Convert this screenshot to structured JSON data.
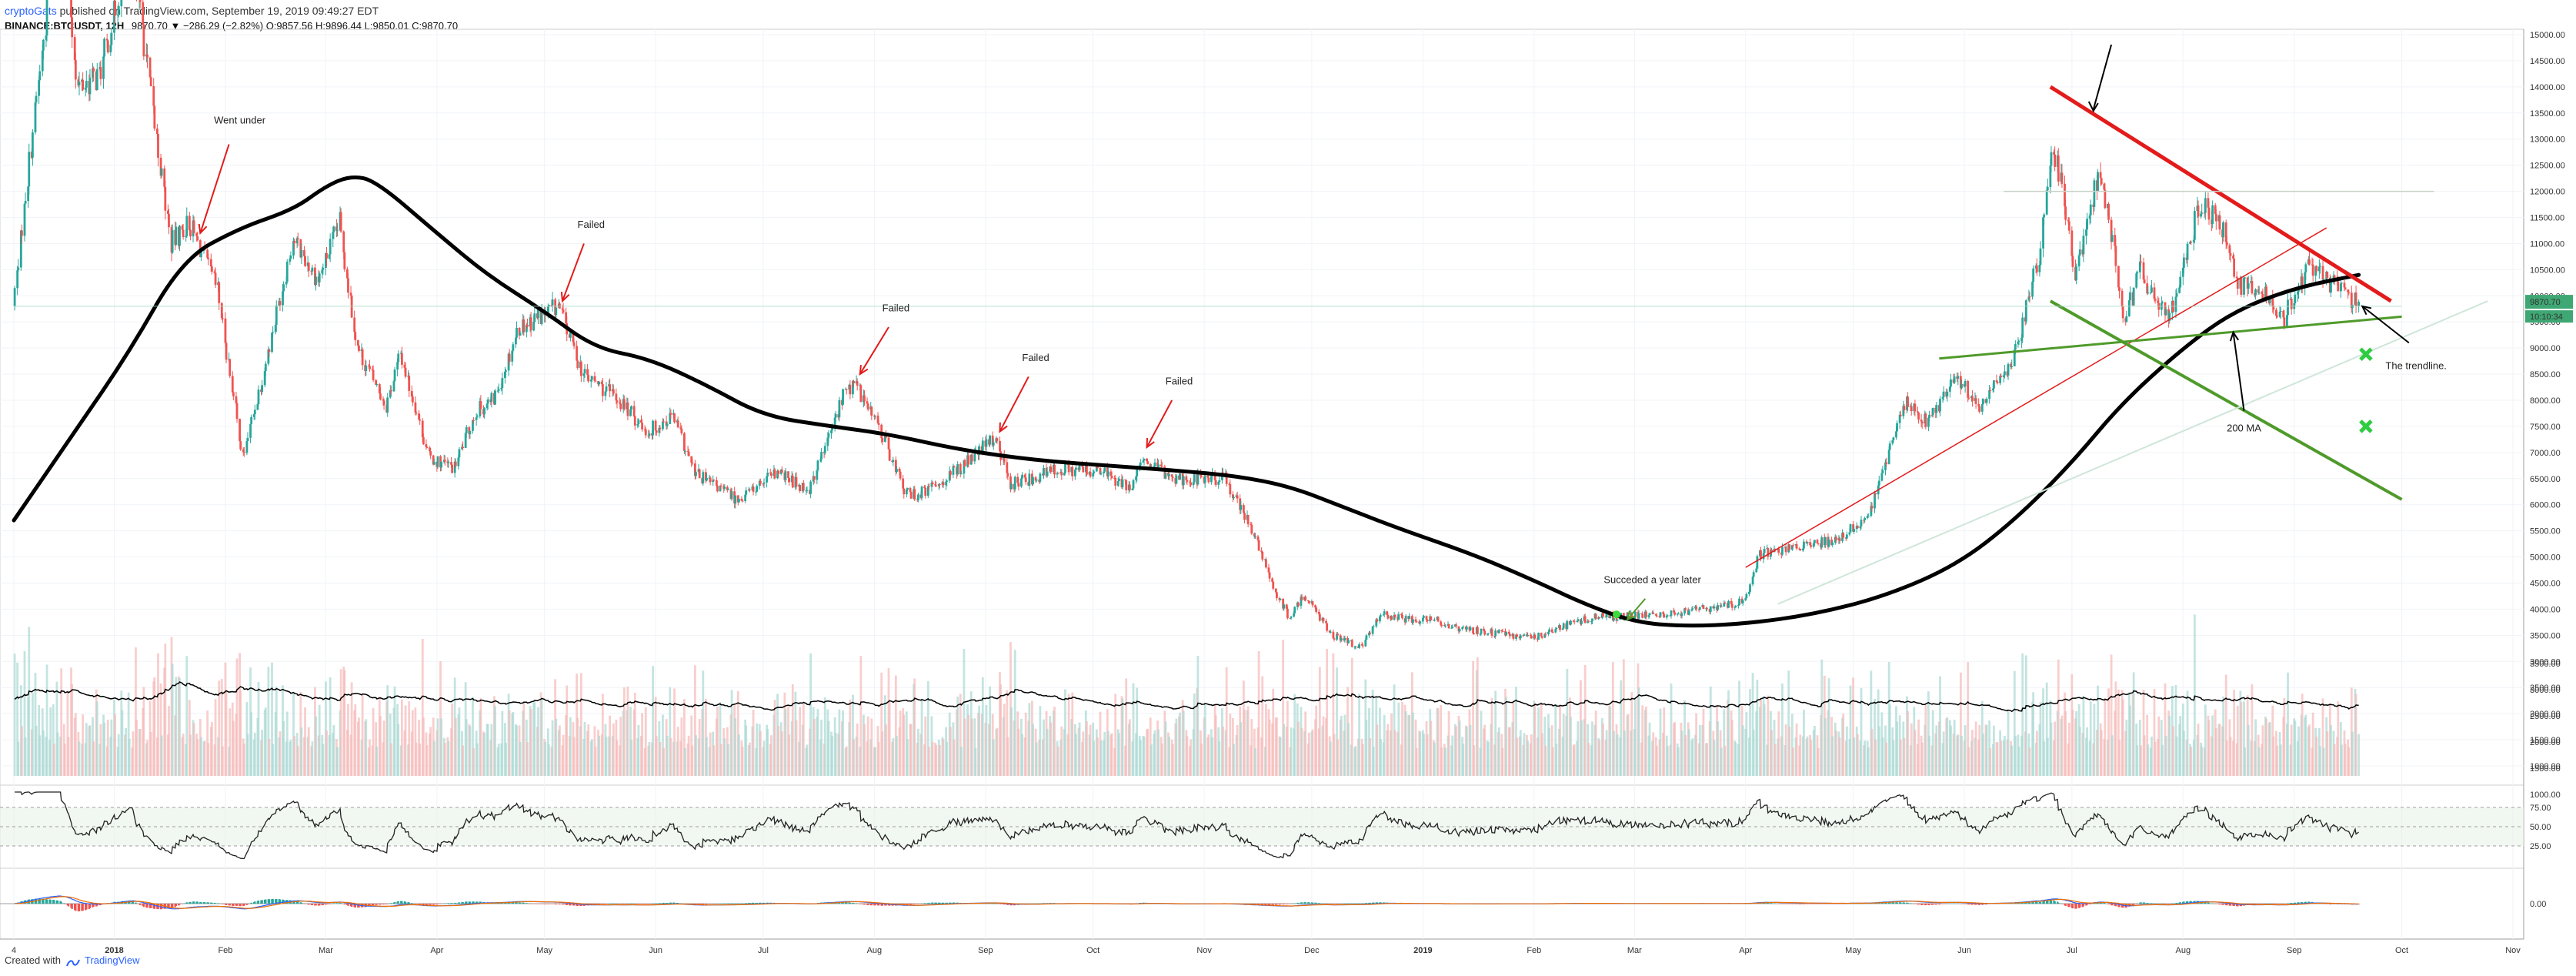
{
  "header": {
    "user": "cryptoGats",
    "published": "published on TradingView.com, September 19, 2019 09:49:27 EDT",
    "symbol": "BINANCE:BTCUSDT, 12H",
    "change": "9870.70 ▼ −286.29 (−2.82%) O:9857.56 H:9896.44 L:9850.01 C:9870.70"
  },
  "footer": {
    "created": "Created with",
    "brand": "TradingView"
  },
  "colors": {
    "up": "#26a69a",
    "down": "#ef5350",
    "ma": "#000000",
    "red_line": "#e31b1b",
    "green_line": "#4f9a2b",
    "price_tag": "#3fa773"
  },
  "price_tags": {
    "last": "9870.70",
    "countdown": "10:10:34"
  },
  "chart_data": [
    {
      "type": "candlestick",
      "title": "",
      "x_start": "2018-01-01",
      "x_end": "2019-11-01",
      "x_ticks": [
        "4",
        "2018",
        "Feb",
        "Mar",
        "Apr",
        "May",
        "Jun",
        "Jul",
        "Aug",
        "Sep",
        "Oct",
        "Nov",
        "Dec",
        "2019",
        "Feb",
        "Mar",
        "Apr",
        "May",
        "Jun",
        "Jul",
        "Aug",
        "Sep",
        "Oct",
        "Nov"
      ],
      "x_tick_dates": [
        "2017-12-04",
        "2018-01-01",
        "2018-02-01",
        "2018-03-01",
        "2018-04-01",
        "2018-05-01",
        "2018-06-01",
        "2018-07-01",
        "2018-08-01",
        "2018-09-01",
        "2018-10-01",
        "2018-11-01",
        "2018-12-01",
        "2019-01-01",
        "2019-02-01",
        "2019-03-01",
        "2019-04-01",
        "2019-05-01",
        "2019-06-01",
        "2019-07-01",
        "2019-08-01",
        "2019-09-01",
        "2019-10-01",
        "2019-11-01"
      ],
      "ylim": [
        0,
        15000
      ],
      "y_ticks": [
        "15000.00",
        "14500.00",
        "14000.00",
        "13500.00",
        "13000.00",
        "12500.00",
        "12000.00",
        "11500.00",
        "11000.00",
        "10500.00",
        "10000.00",
        "9500.00",
        "9000.00",
        "8500.00",
        "8000.00",
        "7500.00",
        "7000.00",
        "6500.00",
        "6000.00",
        "5500.00",
        "5000.00",
        "4500.00",
        "4000.00",
        "3500.00",
        "3000.00",
        "2500.00",
        "2000.00",
        "1500.00",
        "1000.00"
      ],
      "price_path": [
        [
          "2017-12-04",
          9800
        ],
        [
          "2017-12-10",
          13500
        ],
        [
          "2017-12-17",
          17500
        ],
        [
          "2017-12-22",
          14000
        ],
        [
          "2017-12-28",
          14200
        ],
        [
          "2018-01-06",
          16800
        ],
        [
          "2018-01-12",
          13500
        ],
        [
          "2018-01-17",
          11000
        ],
        [
          "2018-01-22",
          11400
        ],
        [
          "2018-01-30",
          10100
        ],
        [
          "2018-02-06",
          6900
        ],
        [
          "2018-02-12",
          8600
        ],
        [
          "2018-02-20",
          11100
        ],
        [
          "2018-02-27",
          10300
        ],
        [
          "2018-03-05",
          11400
        ],
        [
          "2018-03-10",
          9000
        ],
        [
          "2018-03-18",
          7900
        ],
        [
          "2018-03-22",
          8900
        ],
        [
          "2018-03-30",
          6900
        ],
        [
          "2018-04-06",
          6700
        ],
        [
          "2018-04-12",
          7800
        ],
        [
          "2018-04-17",
          8000
        ],
        [
          "2018-04-24",
          9400
        ],
        [
          "2018-05-05",
          9800
        ],
        [
          "2018-05-12",
          8500
        ],
        [
          "2018-05-22",
          8000
        ],
        [
          "2018-05-30",
          7400
        ],
        [
          "2018-06-06",
          7700
        ],
        [
          "2018-06-12",
          6600
        ],
        [
          "2018-06-24",
          6100
        ],
        [
          "2018-07-05",
          6600
        ],
        [
          "2018-07-14",
          6300
        ],
        [
          "2018-07-20",
          7400
        ],
        [
          "2018-07-24",
          8200
        ],
        [
          "2018-07-27",
          8300
        ],
        [
          "2018-08-03",
          7400
        ],
        [
          "2018-08-10",
          6200
        ],
        [
          "2018-08-14",
          6200
        ],
        [
          "2018-08-25",
          6700
        ],
        [
          "2018-09-04",
          7300
        ],
        [
          "2018-09-08",
          6400
        ],
        [
          "2018-09-14",
          6500
        ],
        [
          "2018-09-22",
          6700
        ],
        [
          "2018-10-05",
          6600
        ],
        [
          "2018-10-11",
          6300
        ],
        [
          "2018-10-15",
          6800
        ],
        [
          "2018-10-25",
          6500
        ],
        [
          "2018-11-07",
          6500
        ],
        [
          "2018-11-14",
          5600
        ],
        [
          "2018-11-20",
          4500
        ],
        [
          "2018-11-25",
          3800
        ],
        [
          "2018-11-29",
          4300
        ],
        [
          "2018-12-07",
          3500
        ],
        [
          "2018-12-15",
          3250
        ],
        [
          "2018-12-20",
          3900
        ],
        [
          "2018-12-28",
          3800
        ],
        [
          "2019-01-05",
          3800
        ],
        [
          "2019-01-10",
          3650
        ],
        [
          "2019-01-20",
          3550
        ],
        [
          "2019-02-01",
          3450
        ],
        [
          "2019-02-08",
          3650
        ],
        [
          "2019-02-18",
          3850
        ],
        [
          "2019-02-24",
          3850
        ],
        [
          "2019-03-10",
          3900
        ],
        [
          "2019-03-20",
          4000
        ],
        [
          "2019-04-01",
          4150
        ],
        [
          "2019-04-05",
          5050
        ],
        [
          "2019-04-15",
          5200
        ],
        [
          "2019-04-25",
          5300
        ],
        [
          "2019-05-05",
          5700
        ],
        [
          "2019-05-12",
          7200
        ],
        [
          "2019-05-16",
          8000
        ],
        [
          "2019-05-22",
          7600
        ],
        [
          "2019-05-30",
          8500
        ],
        [
          "2019-06-05",
          7800
        ],
        [
          "2019-06-15",
          8800
        ],
        [
          "2019-06-22",
          10800
        ],
        [
          "2019-06-26",
          12800
        ],
        [
          "2019-06-29",
          11800
        ],
        [
          "2019-07-02",
          10300
        ],
        [
          "2019-07-09",
          12500
        ],
        [
          "2019-07-16",
          9500
        ],
        [
          "2019-07-20",
          10500
        ],
        [
          "2019-07-28",
          9500
        ],
        [
          "2019-08-06",
          11800
        ],
        [
          "2019-08-12",
          11300
        ],
        [
          "2019-08-17",
          10200
        ],
        [
          "2019-08-24",
          10100
        ],
        [
          "2019-08-29",
          9500
        ],
        [
          "2019-09-05",
          10600
        ],
        [
          "2019-09-12",
          10200
        ],
        [
          "2019-09-19",
          9870
        ]
      ],
      "ma_200_path": [
        [
          "2017-12-04",
          5700
        ],
        [
          "2017-12-20",
          7300
        ],
        [
          "2018-01-05",
          8900
        ],
        [
          "2018-01-20",
          10700
        ],
        [
          "2018-02-05",
          11300
        ],
        [
          "2018-02-20",
          11650
        ],
        [
          "2018-03-01",
          12100
        ],
        [
          "2018-03-08",
          12300
        ],
        [
          "2018-03-15",
          12200
        ],
        [
          "2018-04-01",
          11200
        ],
        [
          "2018-04-15",
          10400
        ],
        [
          "2018-05-01",
          9700
        ],
        [
          "2018-05-15",
          9000
        ],
        [
          "2018-05-30",
          8800
        ],
        [
          "2018-06-15",
          8300
        ],
        [
          "2018-07-01",
          7700
        ],
        [
          "2018-07-20",
          7500
        ],
        [
          "2018-08-05",
          7350
        ],
        [
          "2018-08-25",
          7050
        ],
        [
          "2018-09-15",
          6850
        ],
        [
          "2018-10-05",
          6750
        ],
        [
          "2018-10-25",
          6650
        ],
        [
          "2018-11-10",
          6550
        ],
        [
          "2018-11-25",
          6350
        ],
        [
          "2018-12-10",
          5950
        ],
        [
          "2018-12-25",
          5550
        ],
        [
          "2019-01-15",
          5050
        ],
        [
          "2019-02-01",
          4550
        ],
        [
          "2019-02-15",
          4100
        ],
        [
          "2019-03-01",
          3750
        ],
        [
          "2019-03-15",
          3670
        ],
        [
          "2019-04-01",
          3720
        ],
        [
          "2019-04-20",
          3900
        ],
        [
          "2019-05-10",
          4250
        ],
        [
          "2019-05-30",
          4850
        ],
        [
          "2019-06-15",
          5700
        ],
        [
          "2019-07-01",
          6800
        ],
        [
          "2019-07-15",
          7950
        ],
        [
          "2019-08-01",
          9000
        ],
        [
          "2019-08-15",
          9700
        ],
        [
          "2019-09-01",
          10150
        ],
        [
          "2019-09-19",
          10400
        ]
      ],
      "annotations": [
        {
          "text": "Went under",
          "date": "2018-02-05",
          "price": 13300
        },
        {
          "text": "Failed",
          "date": "2018-05-14",
          "price": 11300
        },
        {
          "text": "Failed",
          "date": "2018-08-07",
          "price": 9700
        },
        {
          "text": "Failed",
          "date": "2018-09-15",
          "price": 8750
        },
        {
          "text": "Failed",
          "date": "2018-10-25",
          "price": 8300
        },
        {
          "text": "Succeded a year later",
          "date": "2019-03-06",
          "price": 4500
        },
        {
          "text": "200 MA",
          "date": "2019-08-18",
          "price": 7400
        },
        {
          "text": "The trendline.",
          "date": "2019-10-05",
          "price": 8600
        }
      ],
      "markers": [
        {
          "date": "2019-09-21",
          "price": 8880
        },
        {
          "date": "2019-09-21",
          "price": 7500
        }
      ]
    },
    {
      "type": "bar",
      "title": "Volume",
      "y_ticks": [
        "3500.00",
        "3000.00",
        "2500.00",
        "2000.00",
        "1500.00",
        "1000.00"
      ]
    },
    {
      "type": "line",
      "title": "RSI",
      "y_ticks": [
        "75.00",
        "50.00",
        "25.00"
      ],
      "ylim": [
        0,
        100
      ]
    },
    {
      "type": "histogram",
      "title": "MACD",
      "y_ticks": [
        "0.00"
      ]
    }
  ]
}
